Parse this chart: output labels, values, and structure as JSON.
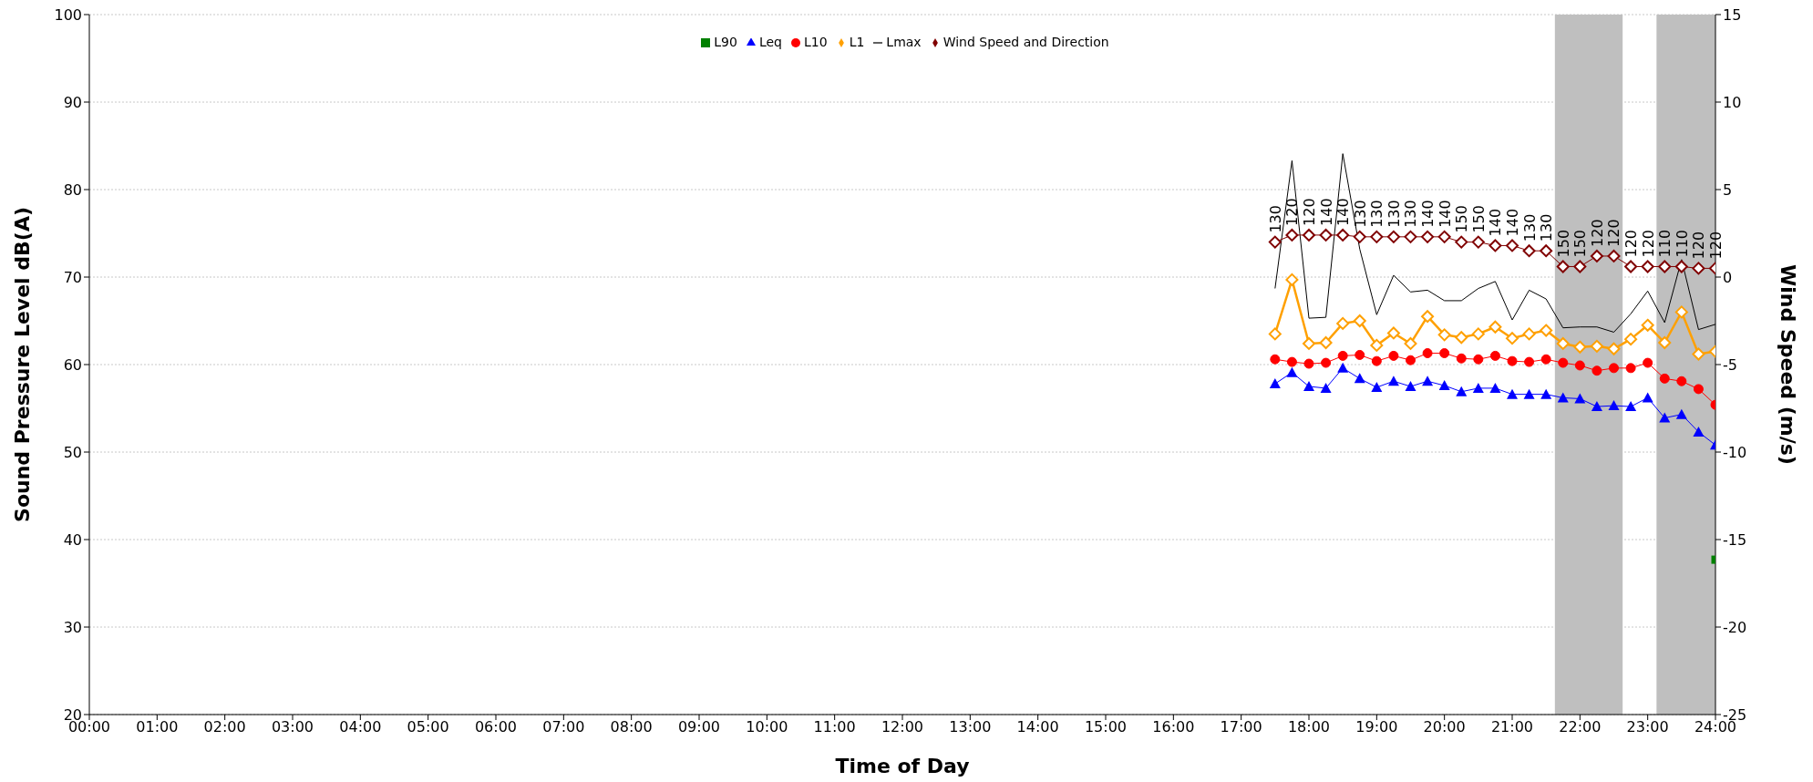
{
  "chart_data": {
    "type": "line",
    "xlabel": "Time of Day",
    "ylabel": "Sound Pressure Level dB(A)",
    "y2label": "Wind Speed (m/s)",
    "x": [
      17.5,
      17.75,
      18,
      18.25,
      18.5,
      18.75,
      19,
      19.25,
      19.5,
      19.75,
      20,
      20.25,
      20.5,
      20.75,
      21,
      21.25,
      21.5,
      21.75,
      22,
      22.25,
      22.5,
      22.75,
      23,
      23.25,
      23.5,
      23.75,
      24
    ],
    "xlim": [
      0,
      24
    ],
    "xticks": [
      {
        "value": 0,
        "label": "00:00"
      },
      {
        "value": 1,
        "label": "01:00"
      },
      {
        "value": 2,
        "label": "02:00"
      },
      {
        "value": 3,
        "label": "03:00"
      },
      {
        "value": 4,
        "label": "04:00"
      },
      {
        "value": 5,
        "label": "05:00"
      },
      {
        "value": 6,
        "label": "06:00"
      },
      {
        "value": 7,
        "label": "07:00"
      },
      {
        "value": 8,
        "label": "08:00"
      },
      {
        "value": 9,
        "label": "09:00"
      },
      {
        "value": 10,
        "label": "10:00"
      },
      {
        "value": 11,
        "label": "11:00"
      },
      {
        "value": 12,
        "label": "12:00"
      },
      {
        "value": 13,
        "label": "13:00"
      },
      {
        "value": 14,
        "label": "14:00"
      },
      {
        "value": 15,
        "label": "15:00"
      },
      {
        "value": 16,
        "label": "16:00"
      },
      {
        "value": 17,
        "label": "17:00"
      },
      {
        "value": 18,
        "label": "18:00"
      },
      {
        "value": 19,
        "label": "19:00"
      },
      {
        "value": 20,
        "label": "20:00"
      },
      {
        "value": 21,
        "label": "21:00"
      },
      {
        "value": 22,
        "label": "22:00"
      },
      {
        "value": 23,
        "label": "23:00"
      },
      {
        "value": 24,
        "label": "24:00"
      }
    ],
    "ylim": [
      20,
      100
    ],
    "yticks": [
      20,
      30,
      40,
      50,
      60,
      70,
      80,
      90,
      100
    ],
    "y2lim": [
      -25,
      15
    ],
    "y2ticks": [
      -25,
      -20,
      -15,
      -10,
      -5,
      0,
      5,
      10,
      15
    ],
    "grid": "y",
    "legend": "top",
    "bands": [
      {
        "axis": "x",
        "from": 21.63,
        "to": 22.63,
        "color": "#bfbfbf"
      },
      {
        "axis": "x",
        "from": 23.13,
        "to": 24,
        "color": "#bfbfbf"
      }
    ],
    "series": [
      {
        "name": "L90",
        "color": "#008000",
        "marker": "square",
        "x": [
          24
        ],
        "values": [
          37.7
        ]
      },
      {
        "name": "Leq",
        "color": "#0000ff",
        "marker": "triangle",
        "values": [
          57.8,
          59.1,
          57.5,
          57.3,
          59.6,
          58.4,
          57.4,
          58.1,
          57.5,
          58.1,
          57.6,
          56.9,
          57.3,
          57.3,
          56.6,
          56.6,
          56.6,
          56.2,
          56.1,
          55.2,
          55.3,
          55.2,
          56.2,
          53.9,
          54.3,
          52.3,
          50.8
        ]
      },
      {
        "name": "L10",
        "color": "#ff0000",
        "marker": "circle",
        "values": [
          60.6,
          60.3,
          60.1,
          60.2,
          61.0,
          61.1,
          60.4,
          61.0,
          60.5,
          61.3,
          61.3,
          60.7,
          60.6,
          61.0,
          60.4,
          60.3,
          60.6,
          60.2,
          59.9,
          59.3,
          59.6,
          59.6,
          60.2,
          58.4,
          58.1,
          57.2,
          55.4
        ]
      },
      {
        "name": "L1",
        "color": "#ffa000",
        "marker": "diamond",
        "values": [
          63.5,
          69.7,
          62.4,
          62.5,
          64.7,
          65.0,
          62.2,
          63.6,
          62.4,
          65.5,
          63.4,
          63.1,
          63.5,
          64.3,
          63.0,
          63.5,
          63.9,
          62.4,
          62.0,
          62.1,
          61.8,
          62.9,
          64.5,
          62.5,
          66.0,
          61.2,
          61.5
        ]
      },
      {
        "name": "Lmax",
        "color": "#000000",
        "marker": "none",
        "values": [
          68.7,
          83.3,
          65.3,
          65.4,
          84.1,
          73.2,
          65.7,
          70.2,
          68.3,
          68.5,
          67.3,
          67.3,
          68.7,
          69.5,
          65.1,
          68.5,
          67.5,
          64.2,
          64.3,
          64.3,
          63.7,
          65.8,
          68.4,
          64.8,
          72.0,
          64.0,
          64.6
        ]
      },
      {
        "name": "Wind Speed and Direction",
        "color": "#800000",
        "marker": "diamond",
        "axis": "y2",
        "values": [
          2.0,
          2.4,
          2.4,
          2.4,
          2.4,
          2.3,
          2.3,
          2.3,
          2.3,
          2.3,
          2.3,
          2.0,
          2.0,
          1.8,
          1.8,
          1.5,
          1.5,
          0.6,
          0.6,
          1.2,
          1.2,
          0.6,
          0.6,
          0.6,
          0.6,
          0.5,
          0.5
        ]
      }
    ],
    "annotations": [
      {
        "text": "130",
        "x": 17.5,
        "y": 74.0
      },
      {
        "text": "120",
        "x": 17.75,
        "y": 74.8
      },
      {
        "text": "120",
        "x": 18,
        "y": 74.8
      },
      {
        "text": "140",
        "x": 18.25,
        "y": 74.8
      },
      {
        "text": "140",
        "x": 18.5,
        "y": 74.8
      },
      {
        "text": "130",
        "x": 18.75,
        "y": 74.6
      },
      {
        "text": "130",
        "x": 19,
        "y": 74.6
      },
      {
        "text": "130",
        "x": 19.25,
        "y": 74.6
      },
      {
        "text": "130",
        "x": 19.5,
        "y": 74.6
      },
      {
        "text": "140",
        "x": 19.75,
        "y": 74.6
      },
      {
        "text": "140",
        "x": 20,
        "y": 74.6
      },
      {
        "text": "150",
        "x": 20.25,
        "y": 74.0
      },
      {
        "text": "150",
        "x": 20.5,
        "y": 74.0
      },
      {
        "text": "140",
        "x": 20.75,
        "y": 73.6
      },
      {
        "text": "140",
        "x": 21,
        "y": 73.6
      },
      {
        "text": "130",
        "x": 21.25,
        "y": 73.0
      },
      {
        "text": "130",
        "x": 21.5,
        "y": 73.0
      },
      {
        "text": "150",
        "x": 21.75,
        "y": 71.2
      },
      {
        "text": "150",
        "x": 22,
        "y": 71.2
      },
      {
        "text": "120",
        "x": 22.25,
        "y": 72.4
      },
      {
        "text": "120",
        "x": 22.5,
        "y": 72.4
      },
      {
        "text": "120",
        "x": 22.75,
        "y": 71.2
      },
      {
        "text": "120",
        "x": 23,
        "y": 71.2
      },
      {
        "text": "110",
        "x": 23.25,
        "y": 71.2
      },
      {
        "text": "110",
        "x": 23.5,
        "y": 71.2
      },
      {
        "text": "120",
        "x": 23.75,
        "y": 71.0
      },
      {
        "text": "120",
        "x": 24,
        "y": 71.0
      }
    ]
  }
}
